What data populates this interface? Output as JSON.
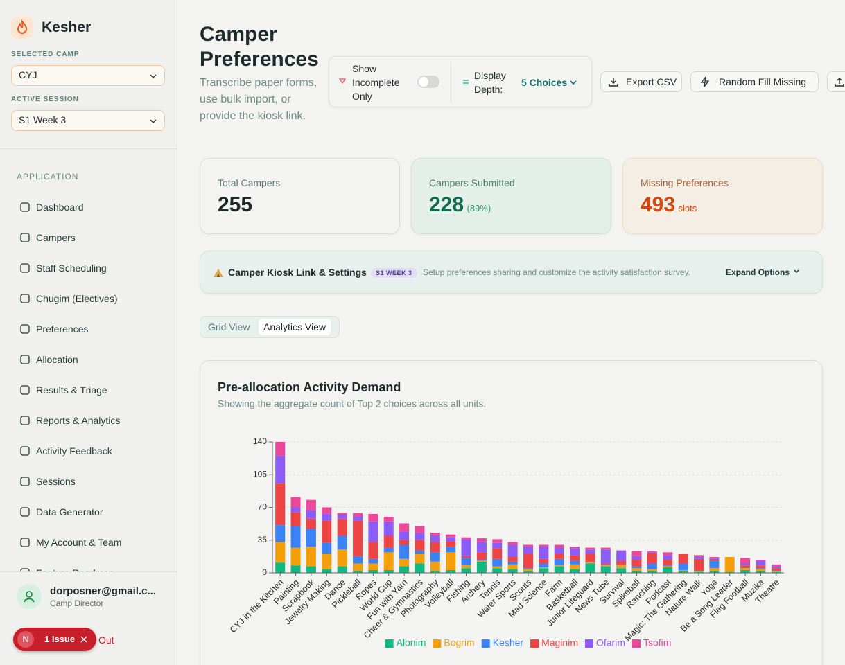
{
  "sidebar": {
    "brand": "Kesher",
    "selected_camp_label": "SELECTED CAMP",
    "selected_camp": "CYJ",
    "active_session_label": "ACTIVE SESSION",
    "active_session": "S1 Week 3",
    "section_label": "APPLICATION",
    "nav": [
      "Dashboard",
      "Campers",
      "Staff Scheduling",
      "Chugim (Electives)",
      "Preferences",
      "Allocation",
      "Results & Triage",
      "Reports & Analytics",
      "Activity Feedback",
      "Sessions",
      "Data Generator",
      "My Account & Team",
      "Feature Roadmap"
    ],
    "user": {
      "email": "dorposner@gmail.c...",
      "role": "Camp Director"
    },
    "issue_badge": {
      "avatar": "N",
      "text": "1 Issue",
      "trailing": "Out"
    }
  },
  "header": {
    "title": "Camper Preferences",
    "subtitle": "Transcribe paper forms, use bulk import, or provide the kiosk link.",
    "show_incomplete": "Show Incomplete Only",
    "display_depth_label": "Display Depth:",
    "display_depth": "5 Choices",
    "export": "Export CSV",
    "random_fill": "Random Fill Missing"
  },
  "stats": [
    {
      "label": "Total Campers",
      "value": "255"
    },
    {
      "label": "Campers Submitted",
      "value": "228",
      "note": "(89%)"
    },
    {
      "label": "Missing Preferences",
      "value": "493",
      "note": "slots"
    }
  ],
  "kiosk": {
    "title": "Camper Kiosk Link & Settings",
    "badge": "S1 WEEK 3",
    "description": "Setup preferences sharing and customize the activity satisfaction survey.",
    "action": "Expand Options"
  },
  "views": [
    "Grid View",
    "Analytics View"
  ],
  "chart_data": {
    "type": "bar",
    "stacked": true,
    "title": "Pre-allocation Activity Demand",
    "subtitle": "Showing the aggregate count of Top 2 choices across all units.",
    "categories": [
      "CYJ in the Kitchen",
      "Painting",
      "Scrapbook",
      "Jewelry Making",
      "Dance",
      "Pickleball",
      "Ropes",
      "World Cup",
      "Fun with Yarn",
      "Cheer & Gymnastics",
      "Photography",
      "Volleyball",
      "Fishing",
      "Archery",
      "Tennis",
      "Water Sports",
      "Scouts",
      "Mad Science",
      "Farm",
      "Basketball",
      "Junior Lifeguard",
      "News Tube",
      "Survival",
      "Spikeball",
      "Ranching",
      "Podcast",
      "Magic: The Gathering",
      "Nature Walk",
      "Yoga",
      "Be a Song Leader",
      "Flag Football",
      "Muzika",
      "Theatre"
    ],
    "series": [
      {
        "name": "Alonim",
        "color": "#10b981",
        "values": [
          11,
          8,
          7,
          4,
          7,
          2,
          3,
          3,
          7,
          10,
          2,
          3,
          5,
          12,
          5,
          4,
          2,
          5,
          7,
          4,
          10,
          7,
          5,
          2,
          2,
          6,
          2,
          1,
          2,
          1,
          3,
          2,
          1
        ]
      },
      {
        "name": "Bogrim",
        "color": "#f59e0b",
        "values": [
          22,
          19,
          21,
          16,
          18,
          8,
          7,
          19,
          8,
          10,
          10,
          19,
          3,
          1,
          2,
          5,
          2,
          1,
          1,
          5,
          1,
          1,
          3,
          3,
          2,
          1,
          1,
          1,
          3,
          16,
          2,
          2,
          1
        ]
      },
      {
        "name": "Kesher",
        "color": "#3b82f6",
        "values": [
          18,
          23,
          19,
          12,
          15,
          8,
          5,
          5,
          15,
          4,
          10,
          6,
          8,
          1,
          8,
          3,
          1,
          4,
          7,
          4,
          1,
          1,
          1,
          2,
          6,
          1,
          7,
          1,
          8,
          0,
          1,
          1,
          1
        ]
      },
      {
        "name": "Maginim",
        "color": "#ef4444",
        "values": [
          45,
          15,
          11,
          24,
          18,
          38,
          18,
          13,
          5,
          11,
          11,
          6,
          2,
          8,
          11,
          5,
          15,
          5,
          5,
          6,
          8,
          1,
          4,
          7,
          11,
          6,
          10,
          12,
          2,
          0,
          2,
          3,
          2
        ]
      },
      {
        "name": "Ofarim",
        "color": "#8b5cf6",
        "values": [
          29,
          5,
          9,
          7,
          4,
          4,
          22,
          15,
          9,
          8,
          7,
          4,
          18,
          11,
          6,
          13,
          8,
          13,
          7,
          7,
          5,
          15,
          10,
          4,
          1,
          5,
          0,
          2,
          1,
          0,
          2,
          5,
          2
        ]
      },
      {
        "name": "Tsofim",
        "color": "#ec4899",
        "values": [
          15,
          11,
          11,
          7,
          2,
          4,
          8,
          5,
          9,
          7,
          3,
          3,
          2,
          4,
          4,
          3,
          2,
          2,
          3,
          2,
          2,
          2,
          1,
          5,
          1,
          3,
          0,
          2,
          1,
          0,
          6,
          1,
          2
        ]
      }
    ],
    "ylim": [
      0,
      140
    ],
    "yticks": [
      0,
      35,
      70,
      105,
      140
    ],
    "grid": true,
    "legend": "bottom"
  }
}
